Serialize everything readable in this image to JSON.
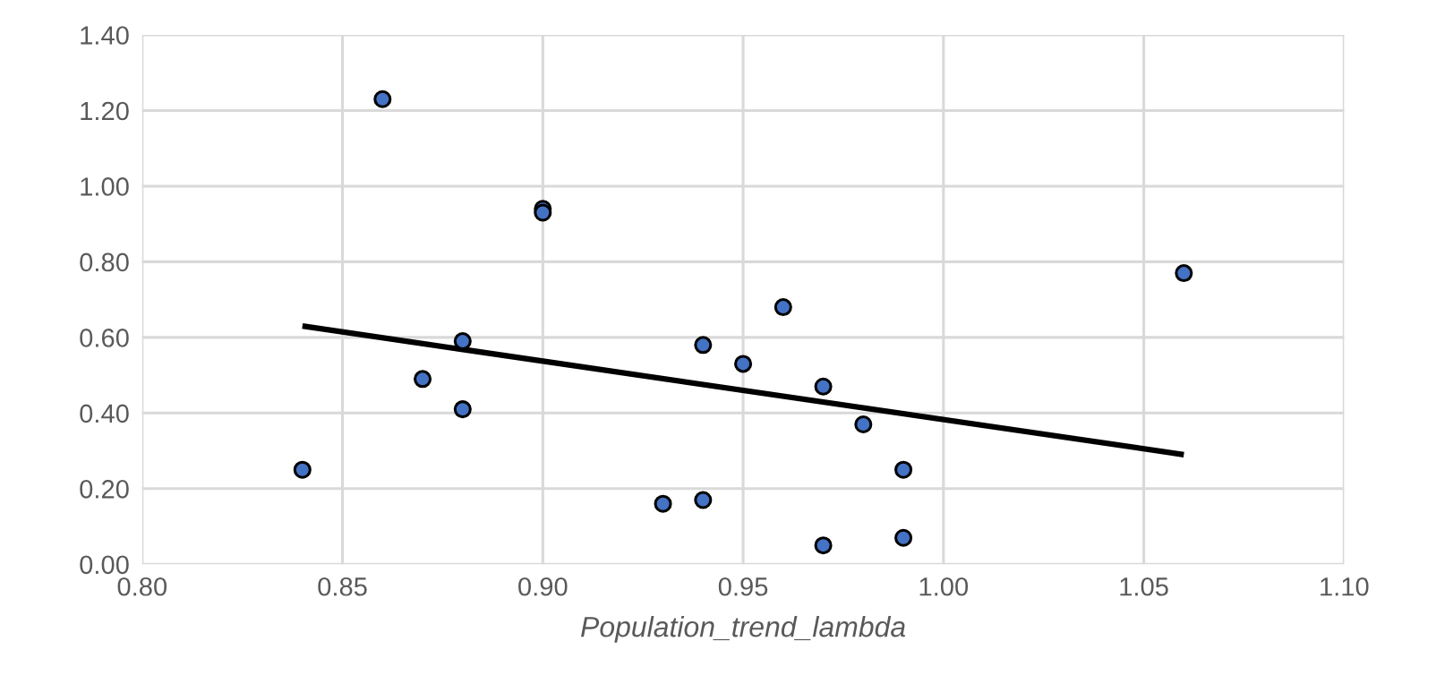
{
  "chart_data": {
    "type": "scatter",
    "xlabel": "Population_trend_lambda",
    "series": [
      {
        "marker": "circle",
        "color": "#4472c4",
        "x": [
          0.84,
          0.86,
          0.87,
          0.88,
          0.88,
          0.9,
          0.9,
          0.93,
          0.94,
          0.94,
          0.95,
          0.96,
          0.97,
          0.97,
          0.98,
          0.99,
          0.99,
          1.06
        ],
        "values": [
          0.25,
          1.23,
          0.49,
          0.59,
          0.41,
          0.94,
          0.93,
          0.16,
          0.17,
          0.58,
          0.53,
          0.68,
          0.47,
          0.05,
          0.37,
          0.25,
          0.07,
          0.77
        ]
      },
      {
        "type": "line",
        "color": "#000000",
        "x": [
          0.84,
          1.06
        ],
        "values": [
          0.63,
          0.29
        ]
      }
    ],
    "xlim": [
      0.8,
      1.1
    ],
    "xticks": [
      {
        "value": 0.8,
        "label": "0.80"
      },
      {
        "value": 0.85,
        "label": "0.85"
      },
      {
        "value": 0.9,
        "label": "0.90"
      },
      {
        "value": 0.95,
        "label": "0.95"
      },
      {
        "value": 1.0,
        "label": "1.00"
      },
      {
        "value": 1.05,
        "label": "1.05"
      },
      {
        "value": 1.1,
        "label": "1.10"
      }
    ],
    "ylim": [
      0,
      1.4
    ],
    "yticks": [
      {
        "value": 0,
        "label": "0.00"
      },
      {
        "value": 0.2,
        "label": "0.20"
      },
      {
        "value": 0.4,
        "label": "0.40"
      },
      {
        "value": 0.6,
        "label": "0.60"
      },
      {
        "value": 0.8,
        "label": "0.80"
      },
      {
        "value": 1.0,
        "label": "1.00"
      },
      {
        "value": 1.2,
        "label": "1.20"
      },
      {
        "value": 1.4,
        "label": "1.40"
      }
    ],
    "grid": true
  }
}
